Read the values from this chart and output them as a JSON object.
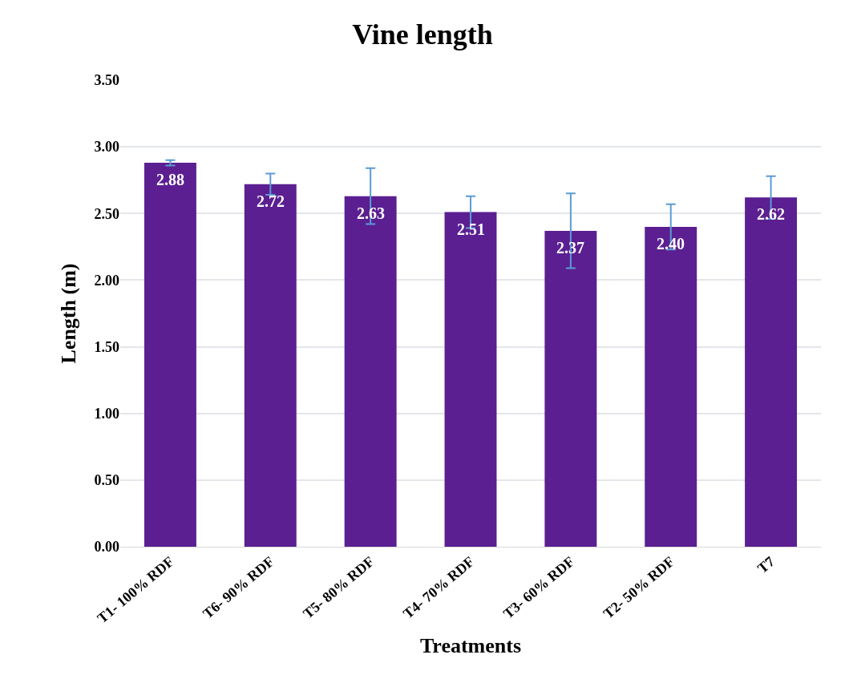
{
  "chart_data": {
    "type": "bar",
    "title": "Vine length",
    "xlabel": "Treatments",
    "ylabel": "Length (m)",
    "categories": [
      "T1- 100% RDF",
      "T6- 90% RDF",
      "T5- 80% RDF",
      "T4- 70% RDF",
      "T3- 60% RDF",
      "T2- 50% RDF",
      "T7"
    ],
    "values": [
      2.88,
      2.72,
      2.63,
      2.51,
      2.37,
      2.4,
      2.62
    ],
    "errors": [
      0.02,
      0.08,
      0.21,
      0.12,
      0.28,
      0.17,
      0.16
    ],
    "color": "#5b1f91",
    "value_labels": [
      "2.88",
      "2.72",
      "2.63",
      "2.51",
      "2.37",
      "2.40",
      "2.62"
    ],
    "ylim": [
      0,
      3.5
    ],
    "yticks": [
      {
        "value": 0,
        "label": "0.00"
      },
      {
        "value": 0.5,
        "label": "0.50"
      },
      {
        "value": 1,
        "label": "1.00"
      },
      {
        "value": 1.5,
        "label": "1.50"
      },
      {
        "value": 2,
        "label": "2.00"
      },
      {
        "value": 2.5,
        "label": "2.50"
      },
      {
        "value": 3,
        "label": "3.00"
      },
      {
        "value": 3.5,
        "label": "3.50"
      }
    ],
    "grid": "y",
    "legend": false
  }
}
